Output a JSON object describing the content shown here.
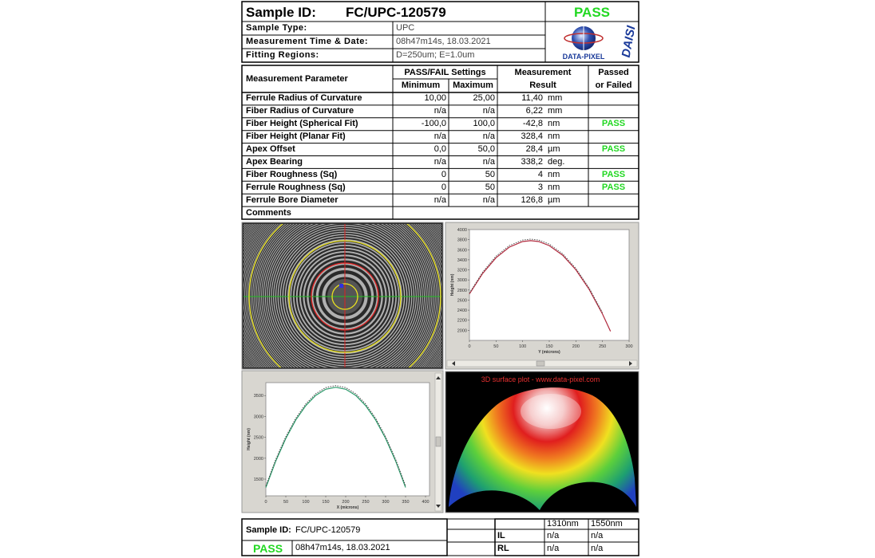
{
  "header": {
    "sample_id_label": "Sample ID:",
    "sample_id": "FC/UPC-120579",
    "status": "PASS",
    "rows": [
      [
        "Sample Type:",
        "UPC"
      ],
      [
        "Measurement Time & Date:",
        "08h47m14s, 18.03.2021"
      ],
      [
        "Fitting Regions:",
        "D=250um; E=1.0um"
      ]
    ],
    "logo": {
      "name": "DATA-PIXEL",
      "product": "DAISI"
    }
  },
  "table": {
    "headers": {
      "parameter": "Measurement Parameter",
      "settings": "PASS/FAIL Settings",
      "minimum": "Minimum",
      "maximum": "Maximum",
      "result": [
        "Measurement",
        "Result"
      ],
      "status": [
        "Passed",
        "or Failed"
      ]
    },
    "rows": [
      {
        "parameter": "Ferrule Radius of Curvature",
        "min": "10,00",
        "max": "25,00",
        "result": "11,40",
        "unit": "mm"
      },
      {
        "parameter": "Fiber Radius of Curvature",
        "min": "n/a",
        "max": "n/a",
        "result": "6,22",
        "unit": "mm"
      },
      {
        "parameter": "Fiber Height (Spherical Fit)",
        "min": "-100,0",
        "max": "100,0",
        "result": "-42,8",
        "unit": "nm",
        "status": "PASS"
      },
      {
        "parameter": "Fiber Height (Planar Fit)",
        "min": "n/a",
        "max": "n/a",
        "result": "328,4",
        "unit": "nm"
      },
      {
        "parameter": "Apex Offset",
        "min": "0,0",
        "max": "50,0",
        "result": "28,4",
        "unit": "µm",
        "status": "PASS"
      },
      {
        "parameter": "Apex Bearing",
        "min": "n/a",
        "max": "n/a",
        "result": "338,2",
        "unit": "deg."
      },
      {
        "parameter": "Fiber Roughness (Sq)",
        "min": "0",
        "max": "50",
        "result": "4",
        "unit": "nm",
        "status": "PASS"
      },
      {
        "parameter": "Ferrule Roughness (Sq)",
        "min": "0",
        "max": "50",
        "result": "3",
        "unit": "nm",
        "status": "PASS"
      },
      {
        "parameter": "Ferrule Bore Diameter",
        "min": "n/a",
        "max": "n/a",
        "result": "126,8",
        "unit": "µm"
      }
    ],
    "comments_label": "Comments"
  },
  "plots": [
    {
      "ylabel": "Height (nm)",
      "xlabel": "Y (microns)",
      "xlim": [
        0,
        300
      ],
      "ylim": [
        1800,
        4000
      ],
      "xticks": [
        0,
        50,
        100,
        150,
        200,
        250,
        300
      ],
      "yticks": [
        2000,
        2200,
        2400,
        2600,
        2800,
        3000,
        3200,
        3400,
        3600,
        3800,
        4000
      ],
      "curves": [
        {
          "color": "#b0283c",
          "style": "solid",
          "x": [
            0,
            25,
            50,
            75,
            100,
            115,
            130,
            150,
            175,
            200,
            225,
            250,
            265
          ],
          "y": [
            2722,
            3132,
            3442,
            3652,
            3762,
            3780,
            3762,
            3682,
            3492,
            3202,
            2812,
            2322,
            1980
          ]
        },
        {
          "color": "#555555",
          "style": "dotted",
          "x": [
            0,
            25,
            50,
            75,
            100,
            115,
            130,
            150,
            175,
            200,
            225,
            250
          ],
          "y": [
            2740,
            3160,
            3472,
            3682,
            3792,
            3810,
            3792,
            3712,
            3520,
            3230,
            2840,
            2350
          ]
        }
      ]
    },
    {
      "ylabel": "Height (nm)",
      "xlabel": "X (microns)",
      "xlim": [
        0,
        410
      ],
      "ylim": [
        1100,
        3810
      ],
      "xticks": [
        0,
        50,
        100,
        150,
        200,
        250,
        300,
        350,
        400
      ],
      "yticks": [
        1500,
        2000,
        2500,
        3000,
        3500
      ],
      "curves": [
        {
          "color": "#2a9a6a",
          "style": "solid",
          "x": [
            0,
            25,
            50,
            75,
            100,
            125,
            150,
            175,
            200,
            225,
            250,
            275,
            300,
            325,
            350
          ],
          "y": [
            1300,
            1936,
            2475,
            2916,
            3259,
            3504,
            3651,
            3700,
            3651,
            3504,
            3259,
            2916,
            2475,
            1936,
            1300
          ]
        },
        {
          "color": "#444444",
          "style": "dotted",
          "x": [
            0,
            25,
            50,
            75,
            100,
            125,
            150,
            175,
            200,
            225,
            250,
            275,
            300,
            325,
            350
          ],
          "y": [
            1340,
            1976,
            2515,
            2956,
            3299,
            3544,
            3691,
            3740,
            3691,
            3544,
            3299,
            2956,
            2515,
            1976,
            1340
          ]
        }
      ]
    }
  ],
  "surface_title": "3D surface plot - www.data-pixel.com",
  "footer": {
    "sample_id_label": "Sample ID:",
    "sample_id": "FC/UPC-120579",
    "status": "PASS",
    "datetime": "08h47m14s, 18.03.2021",
    "loss_table": {
      "columns": [
        "1310nm",
        "1550nm"
      ],
      "rows": [
        {
          "label": "IL",
          "values": [
            "n/a",
            "n/a"
          ]
        },
        {
          "label": "RL",
          "values": [
            "n/a",
            "n/a"
          ]
        }
      ]
    }
  }
}
